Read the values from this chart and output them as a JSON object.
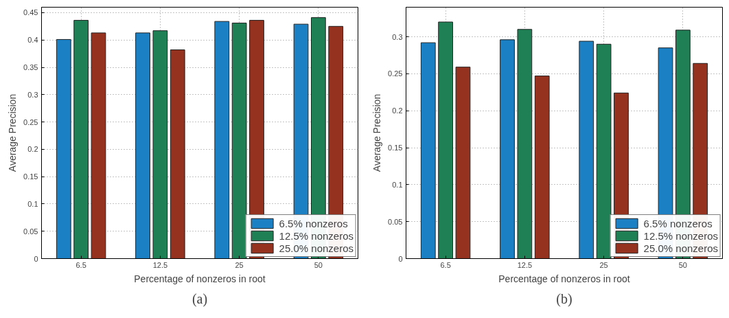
{
  "chart_data": [
    {
      "type": "bar",
      "xlabel": "Percentage of nonzeros in root",
      "ylabel": "Average Precision",
      "categories": [
        "6.5",
        "12.5",
        "25",
        "50"
      ],
      "ylim": [
        0,
        0.46
      ],
      "yticks": [
        {
          "value": 0,
          "label": "0"
        },
        0.05,
        {
          "value": 0.1,
          "label": "0.1"
        },
        0.15,
        {
          "value": 0.2,
          "label": "0.2"
        },
        0.25,
        {
          "value": 0.3,
          "label": "0.3"
        },
        0.35,
        {
          "value": 0.4,
          "label": "0.4"
        },
        0.45
      ],
      "grid": true,
      "legend": "bottom right",
      "annotations": [
        "(a)"
      ],
      "series": [
        {
          "name": "6.5% nonzeros",
          "color": "#1b80c4",
          "values": [
            0.401,
            0.413,
            0.434,
            0.429
          ]
        },
        {
          "name": "12.5% nonzeros",
          "color": "#1f8055",
          "values": [
            0.436,
            0.417,
            0.431,
            0.441
          ]
        },
        {
          "name": "25.0% nonzeros",
          "color": "#95321f",
          "values": [
            0.413,
            0.382,
            0.436,
            0.425
          ]
        }
      ]
    },
    {
      "type": "bar",
      "xlabel": "Percentage of nonzeros in root",
      "ylabel": "Average Precision",
      "categories": [
        "6.5",
        "12.5",
        "25",
        "50"
      ],
      "ylim": [
        0,
        0.34
      ],
      "yticks": [
        {
          "value": 0,
          "label": "0"
        },
        0.05,
        {
          "value": 0.1,
          "label": "0.1"
        },
        0.15,
        {
          "value": 0.2,
          "label": "0.2"
        },
        0.25,
        {
          "value": 0.3,
          "label": "0.3"
        }
      ],
      "grid": true,
      "legend": "bottom right",
      "annotations": [
        "(b)"
      ],
      "series": [
        {
          "name": "6.5% nonzeros",
          "color": "#1b80c4",
          "values": [
            0.292,
            0.296,
            0.294,
            0.285
          ]
        },
        {
          "name": "12.5% nonzeros",
          "color": "#1f8055",
          "values": [
            0.32,
            0.31,
            0.29,
            0.309
          ]
        },
        {
          "name": "25.0% nonzeros",
          "color": "#95321f",
          "values": [
            0.259,
            0.247,
            0.224,
            0.264
          ]
        }
      ]
    }
  ]
}
